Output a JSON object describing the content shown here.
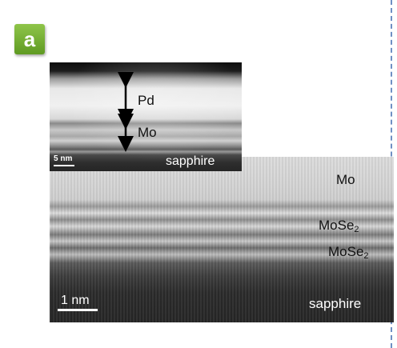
{
  "panel": {
    "label": "a"
  },
  "inset": {
    "layer_top": "Pd",
    "layer_middle": "Mo",
    "substrate": "sapphire",
    "scale_bar": "5 nm"
  },
  "main": {
    "layer_top": "Mo",
    "layer_2_base": "MoSe",
    "layer_2_sub": "2",
    "layer_3_base": "MoSe",
    "layer_3_sub": "2",
    "substrate": "sapphire",
    "scale_bar": "1 nm"
  },
  "colors": {
    "badge": "#6fae2e",
    "divider": "#6f8fc4"
  }
}
